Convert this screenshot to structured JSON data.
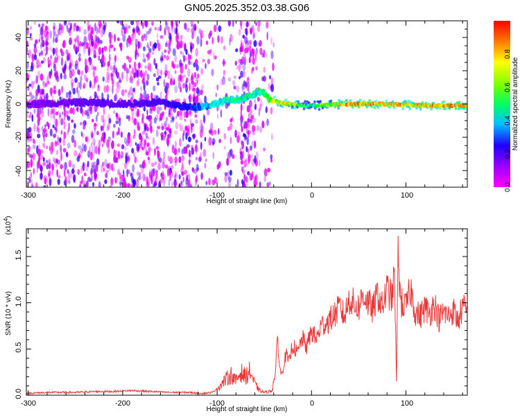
{
  "title": "GN05.2025.352.03.38.G06",
  "top_panel": {
    "xlabel": "Height of straight line (km)",
    "ylabel": "Frequency (Hz)",
    "xticks": [
      "-300",
      "-200",
      "-100",
      "0",
      "100"
    ],
    "yticks": [
      "-40",
      "-20",
      "0",
      "20",
      "40"
    ],
    "colorbar": {
      "label": "Normalized spectral amplitude",
      "ticks": [
        "0.0",
        "0.2",
        "0.4",
        "0.6",
        "0.8"
      ]
    }
  },
  "bottom_panel": {
    "xlabel": "Height of straight line (km)",
    "ylabel": "SNR (10 * v/v)",
    "multiplier": "(x10",
    "multiplier_exp": "4",
    "multiplier_close": ")",
    "xticks": [
      "-300",
      "-200",
      "-100",
      "0",
      "100"
    ],
    "yticks": [
      "0.0",
      "0.5",
      "1.0",
      "1.5"
    ]
  },
  "chart_data": [
    {
      "type": "heatmap",
      "title": "GN05.2025.352.03.38.G06",
      "xlabel": "Height of straight line (km)",
      "ylabel": "Frequency (Hz)",
      "xlim": [
        -302,
        165
      ],
      "ylim": [
        -50,
        50
      ],
      "colorbar_label": "Normalized spectral amplitude",
      "colorbar_range": [
        0,
        1
      ],
      "colormap": [
        "#ff00ff",
        "#7f00ff",
        "#0000ff",
        "#00ffff",
        "#00ff00",
        "#ffff00",
        "#ff8000",
        "#ff0000"
      ],
      "ridge": {
        "x": [
          -300,
          -240,
          -200,
          -160,
          -130,
          -110,
          -90,
          -75,
          -62,
          -55,
          -50,
          -45,
          -35,
          -25,
          0,
          40,
          80,
          120,
          165
        ],
        "frequency": [
          0,
          1,
          0,
          1,
          -2,
          -1,
          2,
          3,
          5,
          8,
          6,
          3,
          1,
          0,
          -1,
          0,
          0,
          -1,
          -1
        ],
        "amplitude": [
          0.15,
          0.2,
          0.2,
          0.25,
          0.3,
          0.45,
          0.5,
          0.55,
          0.5,
          0.6,
          0.6,
          0.7,
          0.75,
          0.8,
          0.55,
          0.95,
          0.9,
          0.9,
          0.95
        ]
      }
    },
    {
      "type": "line",
      "xlabel": "Height of straight line (km)",
      "ylabel": "SNR (10 * v/v)",
      "y_multiplier": 10000,
      "xlim": [
        -302,
        165
      ],
      "ylim": [
        0,
        1.8
      ],
      "color": "#e83a3a",
      "x": [
        -302,
        -280,
        -250,
        -230,
        -210,
        -190,
        -170,
        -150,
        -130,
        -115,
        -105,
        -97,
        -90,
        -85,
        -80,
        -75,
        -70,
        -65,
        -60,
        -55,
        -50,
        -45,
        -42,
        -38,
        -36,
        -34,
        -32,
        -30,
        -27,
        -24,
        -20,
        -15,
        -10,
        -5,
        0,
        5,
        10,
        15,
        20,
        25,
        30,
        35,
        40,
        45,
        50,
        55,
        60,
        65,
        70,
        75,
        80,
        85,
        88,
        90,
        92,
        93,
        95,
        100,
        105,
        110,
        115,
        120,
        125,
        130,
        135,
        140,
        145,
        150,
        155,
        160,
        165
      ],
      "y": [
        0.02,
        0.03,
        0.03,
        0.04,
        0.04,
        0.05,
        0.04,
        0.03,
        0.03,
        0.02,
        0.03,
        0.1,
        0.18,
        0.22,
        0.15,
        0.25,
        0.2,
        0.26,
        0.12,
        0.05,
        0.03,
        0.04,
        0.05,
        0.25,
        0.65,
        0.32,
        0.22,
        0.3,
        0.45,
        0.35,
        0.55,
        0.45,
        0.62,
        0.52,
        0.7,
        0.6,
        0.75,
        0.78,
        0.82,
        0.88,
        0.95,
        0.85,
        1.05,
        0.98,
        0.95,
        1.1,
        1.0,
        0.92,
        1.1,
        0.95,
        1.15,
        1.05,
        1.3,
        0.1,
        1.75,
        1.2,
        1.0,
        0.95,
        1.15,
        0.9,
        0.85,
        0.95,
        0.88,
        1.0,
        0.82,
        0.9,
        0.85,
        0.92,
        0.8,
        0.95,
        0.9
      ]
    }
  ]
}
